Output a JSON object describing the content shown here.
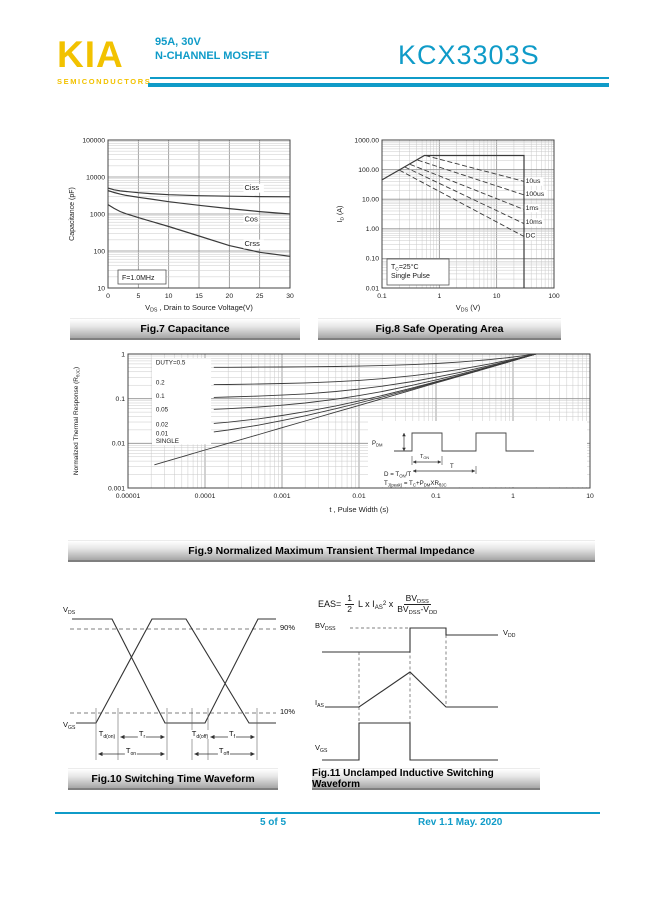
{
  "page": {
    "accent": "#0f9bc8",
    "logo_color": "#f2c200"
  },
  "header": {
    "logo": "KIA",
    "logo_sub": "SEMICONDUCTORS",
    "spec_line1": "95A, 30V",
    "spec_line2": "N-CHANNEL MOSFET",
    "part_number": "KCX3303S"
  },
  "footer": {
    "page_num": "5 of 5",
    "revision": "Rev 1.1 May. 2020"
  },
  "captions": {
    "fig7": "Fig.7 Capacitance",
    "fig8": "Fig.8 Safe Operating Area",
    "fig9": "Fig.9 Normalized Maximum Transient Thermal Impedance",
    "fig10": "Fig.10 Switching Time Waveform",
    "fig11": "Fig.11 Unclamped Inductive Switching Waveform"
  },
  "chart_data": [
    {
      "id": "fig7",
      "type": "line",
      "title": "Fig.7 Capacitance",
      "xscale": "linear",
      "yscale": "log",
      "xlim": [
        0,
        30
      ],
      "ylim": [
        10,
        100000
      ],
      "xticks": [
        "0",
        "5",
        "10",
        "15",
        "20",
        "25",
        "30"
      ],
      "yticks": [
        "10",
        "100",
        "1000",
        "10000",
        "100000"
      ],
      "xlabel_parts": [
        {
          "t": "V"
        },
        {
          "t": "DS",
          "s": 1
        },
        {
          "t": " , Drain to Source Voltage(V)"
        }
      ],
      "ylabel_parts": [
        {
          "t": "Capacitance (pF)"
        }
      ],
      "note": [
        [
          {
            "t": "F=1.0MHz"
          }
        ]
      ],
      "series": [
        {
          "name": "Ciss",
          "x": [
            0,
            1,
            2,
            3,
            5,
            7,
            10,
            15,
            20,
            25,
            30
          ],
          "y": [
            5000,
            4520,
            4230,
            4050,
            3760,
            3560,
            3330,
            3130,
            3020,
            2960,
            2920
          ],
          "w": 1.2
        },
        {
          "name": "Cos",
          "x": [
            0,
            1,
            2,
            3,
            5,
            7,
            10,
            15,
            20,
            25,
            30
          ],
          "y": [
            4300,
            3820,
            3460,
            3190,
            2820,
            2540,
            2150,
            1720,
            1400,
            1160,
            1000
          ],
          "w": 1.2
        },
        {
          "name": "Crss",
          "x": [
            0,
            1,
            2,
            3,
            5,
            7,
            10,
            15,
            20,
            25,
            30
          ],
          "y": [
            1800,
            1420,
            1170,
            1010,
            800,
            640,
            460,
            255,
            140,
            92,
            72
          ],
          "w": 1.2
        }
      ],
      "series_labels": [
        {
          "text": "Ciss",
          "x": 22.5,
          "y": 4400
        },
        {
          "text": "Cos",
          "x": 22.5,
          "y": 620
        },
        {
          "text": "Crss",
          "x": 22.5,
          "y": 135
        }
      ]
    },
    {
      "id": "fig8",
      "type": "line",
      "title": "Fig.8 Safe Operating Area",
      "xscale": "log",
      "yscale": "log",
      "xlim": [
        0.1,
        100
      ],
      "ylim": [
        0.01,
        1000
      ],
      "xticks": [
        "0.1",
        "1",
        "10",
        "100"
      ],
      "yticks": [
        "0.01",
        "0.10",
        "1.00",
        "10.00",
        "100.00",
        "1000.00"
      ],
      "xlabel_parts": [
        {
          "t": "V"
        },
        {
          "t": "DS",
          "s": 1
        },
        {
          "t": " (V)"
        }
      ],
      "ylabel_parts": [
        {
          "t": "I"
        },
        {
          "t": "D",
          "s": 1
        },
        {
          "t": " (A)"
        }
      ],
      "note": [
        [
          {
            "t": "T"
          },
          {
            "t": "C",
            "s": 1
          },
          {
            "t": "=25°C"
          }
        ],
        [
          {
            "t": "Single Pulse"
          }
        ]
      ],
      "series": [
        {
          "name": "limit",
          "x": [
            0.1,
            0.55,
            30,
            30
          ],
          "y": [
            45,
            300,
            300,
            0.01
          ],
          "w": 1.2
        },
        {
          "name": "10us",
          "x": [
            0.57,
            30
          ],
          "y": [
            300,
            40
          ],
          "dash": 1
        },
        {
          "name": "100us",
          "x": [
            0.42,
            30
          ],
          "y": [
            210,
            14
          ],
          "dash": 1
        },
        {
          "name": "1ms",
          "x": [
            0.31,
            30
          ],
          "y": [
            150,
            4.5
          ],
          "dash": 1
        },
        {
          "name": "10ms",
          "x": [
            0.25,
            30
          ],
          "y": [
            122,
            1.5
          ],
          "dash": 1
        },
        {
          "name": "DC",
          "x": [
            0.2,
            30
          ],
          "y": [
            96,
            0.55
          ],
          "dash": 1
        }
      ],
      "series_labels": [
        {
          "text": "10us",
          "x": 32,
          "y": 35
        },
        {
          "text": "100us",
          "x": 32,
          "y": 13
        },
        {
          "text": "1ms",
          "x": 32,
          "y": 4.4
        },
        {
          "text": "10ms",
          "x": 32,
          "y": 1.45
        },
        {
          "text": "DC",
          "x": 32,
          "y": 0.5
        }
      ]
    },
    {
      "id": "fig9",
      "type": "line",
      "title": "Fig.9 Normalized Maximum Transient Thermal Impedance",
      "xscale": "log",
      "yscale": "log",
      "xlim": [
        1e-05,
        10
      ],
      "ylim": [
        0.001,
        1
      ],
      "xticks": [
        "0.00001",
        "0.0001",
        "0.001",
        "0.01",
        "0.1",
        "1",
        "10"
      ],
      "yticks": [
        "0.001",
        "0.01",
        "0.1",
        "1"
      ],
      "xlabel_parts": [
        {
          "t": "t , Pulse Width (s)"
        }
      ],
      "ylabel_parts": [
        {
          "t": "Normalized Thermal Response (R"
        },
        {
          "t": "θJC",
          "s": 1
        },
        {
          "t": ")"
        }
      ],
      "mask_rects": [
        [
          2.05e-05,
          0.0095,
          0.00012,
          0.8
        ]
      ],
      "series": [
        {
          "name": "DUTY=0.5",
          "x": [
            0.00013,
            0.0002,
            0.0005,
            0.001,
            0.002,
            0.005,
            0.01,
            0.02,
            0.05,
            0.1,
            0.2,
            0.5,
            1,
            2,
            5,
            10
          ],
          "y": [
            0.504,
            0.505,
            0.508,
            0.511,
            0.516,
            0.525,
            0.535,
            0.55,
            0.579,
            0.612,
            0.658,
            0.75,
            0.854,
            1,
            1,
            1
          ]
        },
        {
          "name": "0.2",
          "x": [
            0.00013,
            0.0002,
            0.0005,
            0.001,
            0.002,
            0.005,
            0.01,
            0.02,
            0.05,
            0.1,
            0.2,
            0.5,
            1,
            2,
            5,
            10
          ],
          "y": [
            0.206,
            0.208,
            0.213,
            0.218,
            0.225,
            0.24,
            0.257,
            0.28,
            0.326,
            0.379,
            0.453,
            0.6,
            0.766,
            1,
            1,
            1
          ]
        },
        {
          "name": "0.1",
          "x": [
            0.00013,
            0.0002,
            0.0005,
            0.001,
            0.002,
            0.005,
            0.01,
            0.02,
            0.05,
            0.1,
            0.2,
            0.5,
            1,
            2,
            5,
            10
          ],
          "y": [
            0.107,
            0.109,
            0.114,
            0.12,
            0.128,
            0.145,
            0.164,
            0.19,
            0.242,
            0.302,
            0.384,
            0.55,
            0.736,
            1,
            1,
            1
          ]
        },
        {
          "name": "0.05",
          "x": [
            0.00013,
            0.0002,
            0.0005,
            0.001,
            0.002,
            0.005,
            0.01,
            0.02,
            0.05,
            0.1,
            0.2,
            0.5,
            1,
            2,
            5,
            10
          ],
          "y": [
            0.0577,
            0.0595,
            0.065,
            0.0713,
            0.08,
            0.0975,
            0.117,
            0.145,
            0.2,
            0.263,
            0.35,
            0.525,
            0.722,
            1,
            1,
            1
          ]
        },
        {
          "name": "0.02",
          "x": [
            0.00013,
            0.0002,
            0.0005,
            0.001,
            0.002,
            0.005,
            0.01,
            0.02,
            0.05,
            0.1,
            0.2,
            0.5,
            1,
            2,
            5,
            10
          ],
          "y": [
            0.0279,
            0.0298,
            0.0355,
            0.0419,
            0.051,
            0.069,
            0.0893,
            0.118,
            0.175,
            0.24,
            0.33,
            0.51,
            0.713,
            1,
            1,
            1
          ]
        },
        {
          "name": "0.01",
          "x": [
            0.00013,
            0.0002,
            0.0005,
            0.001,
            0.002,
            0.005,
            0.01,
            0.02,
            0.05,
            0.1,
            0.2,
            0.5,
            1,
            2,
            5,
            10
          ],
          "y": [
            0.018,
            0.0199,
            0.0256,
            0.0322,
            0.0413,
            0.0595,
            0.08,
            0.109,
            0.166,
            0.232,
            0.323,
            0.505,
            0.71,
            1,
            1,
            1
          ]
        },
        {
          "name": "SINGLE",
          "x": [
            2.2e-05,
            5e-05,
            0.0001,
            0.0002,
            0.0005,
            0.001,
            0.002,
            0.005,
            0.01,
            0.02,
            0.05,
            0.1,
            0.2,
            0.5,
            1,
            2,
            5,
            10
          ],
          "y": [
            0.0033,
            0.005,
            0.0071,
            0.01,
            0.0158,
            0.0224,
            0.0316,
            0.05,
            0.0707,
            0.1,
            0.158,
            0.224,
            0.316,
            0.5,
            0.707,
            1,
            1,
            1
          ]
        }
      ],
      "series_labels": [
        {
          "text": "DUTY=0.5",
          "x": 2.3e-05,
          "y": 0.58
        },
        {
          "text": "0.2",
          "x": 2.3e-05,
          "y": 0.205
        },
        {
          "text": "0.1",
          "x": 2.3e-05,
          "y": 0.103
        },
        {
          "text": "0.05",
          "x": 2.3e-05,
          "y": 0.052
        },
        {
          "text": "0.02",
          "x": 2.3e-05,
          "y": 0.024
        },
        {
          "text": "0.01",
          "x": 2.3e-05,
          "y": 0.0148
        },
        {
          "text": "SINGLE",
          "x": 2.3e-05,
          "y": 0.0103
        }
      ],
      "inset": {
        "pdm": [
          {
            "t": "P"
          },
          {
            "t": "DM",
            "s": 1
          }
        ],
        "ton": [
          {
            "t": "T"
          },
          {
            "t": "ON",
            "s": 1
          }
        ],
        "t_label": [
          {
            "t": "T"
          }
        ],
        "eq1": [
          {
            "t": "D = T"
          },
          {
            "t": "ON",
            "s": 1
          },
          {
            "t": "/T"
          }
        ],
        "eq2": [
          {
            "t": "T"
          },
          {
            "t": "J(peak)",
            "s": 1
          },
          {
            "t": " = T"
          },
          {
            "t": "C",
            "s": 1
          },
          {
            "t": "+P"
          },
          {
            "t": "DM",
            "s": 1
          },
          {
            "t": "XR"
          },
          {
            "t": "θJC",
            "s": 1
          }
        ]
      }
    }
  ],
  "fig10": {
    "labels": {
      "vds": {
        "b": "V",
        "s": "DS"
      },
      "vgs": {
        "b": "V",
        "s": "GS"
      },
      "p90": "90%",
      "p10": "10%",
      "td_on": {
        "b": "T",
        "s": "d(on)"
      },
      "tr": {
        "b": "T",
        "s": "r"
      },
      "td_off": {
        "b": "T",
        "s": "d(off)"
      },
      "tf": {
        "b": "T",
        "s": "f"
      },
      "ton": {
        "b": "T",
        "s": "on"
      },
      "toff": {
        "b": "T",
        "s": "off"
      }
    }
  },
  "fig11": {
    "formula": {
      "lhs": "EAS=",
      "f1n": "1",
      "f1d": "2",
      "m1": "L x I",
      "m1s": "AS",
      "m1e": "2",
      "times": "x",
      "f2n_b": "BV",
      "f2n_s": "DSS",
      "f2d_b1": "BV",
      "f2d_s1": "DSS",
      "f2d_m": "-V",
      "f2d_s2": "DD"
    },
    "labels": {
      "bvdss": {
        "b": "BV",
        "s": "DSS"
      },
      "vdd": {
        "b": "V",
        "s": "DD"
      },
      "ias": {
        "b": "I",
        "s": "AS"
      },
      "vgs": {
        "b": "V",
        "s": "GS"
      }
    }
  }
}
